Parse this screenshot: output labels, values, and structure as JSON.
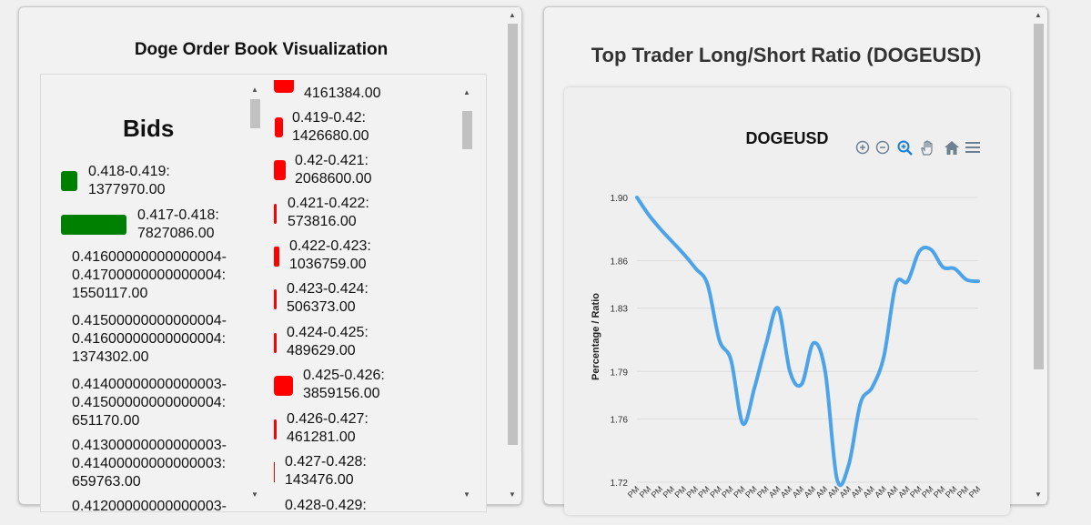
{
  "order_book": {
    "title": "Doge Order Book Visualization",
    "bids": {
      "heading": "Bids",
      "levels": [
        {
          "range": "0.418-0.419:",
          "amount": "1377970.00",
          "color": "#008000"
        },
        {
          "range": "0.417-0.418:",
          "amount": "7827086.00",
          "color": "#008000"
        },
        {
          "range_a": "0.41600000000000004-",
          "range_b": "0.41700000000000004:",
          "amount": "1550117.00"
        },
        {
          "range_a": "0.41500000000000004-",
          "range_b": "0.41600000000000004:",
          "amount": "1374302.00"
        },
        {
          "range_a": "0.41400000000000003-",
          "range_b": "0.41500000000000004:",
          "amount": "651170.00"
        },
        {
          "range_a": "0.41300000000000003-",
          "range_b": "0.41400000000000003:",
          "amount": "659763.00"
        },
        {
          "range_a": "0.41200000000000003-"
        }
      ]
    },
    "asks": {
      "color": "#ff0000",
      "levels": [
        {
          "range": "",
          "amount": "4161384.00"
        },
        {
          "range": "0.419-0.42:",
          "amount": "1426680.00"
        },
        {
          "range": "0.42-0.421:",
          "amount": "2068600.00"
        },
        {
          "range": "0.421-0.422:",
          "amount": "573816.00"
        },
        {
          "range": "0.422-0.423:",
          "amount": "1036759.00"
        },
        {
          "range": "0.423-0.424:",
          "amount": "506373.00"
        },
        {
          "range": "0.424-0.425:",
          "amount": "489629.00"
        },
        {
          "range": "0.425-0.426:",
          "amount": "3859156.00"
        },
        {
          "range": "0.426-0.427:",
          "amount": "461281.00"
        },
        {
          "range": "0.427-0.428:",
          "amount": "143476.00"
        },
        {
          "range": "0.428-0.429:",
          "amount": ""
        }
      ]
    }
  },
  "ratio_panel": {
    "title": "Top Trader Long/Short Ratio (DOGEUSD)",
    "toolbar": {
      "zoom_in": "zoom-in-icon",
      "zoom_out": "zoom-out-icon",
      "selection_zoom": "magnifier-icon",
      "pan": "hand-icon",
      "reset": "home-icon",
      "menu": "menu-icon"
    }
  },
  "chart_data": {
    "type": "line",
    "title": "DOGEUSD",
    "ylabel": "Percentage / Ratio",
    "xlabel": "",
    "ylim": [
      1.72,
      1.9
    ],
    "yticks": [
      "1.90",
      "1.86",
      "1.83",
      "1.79",
      "1.76",
      "1.72"
    ],
    "x": [
      "PM",
      "PM",
      "PM",
      "PM",
      "PM",
      "PM",
      "PM",
      "PM",
      "PM",
      "PM",
      "PM",
      "PM",
      "AM",
      "AM",
      "AM",
      "AM",
      "AM",
      "AM",
      "AM",
      "AM",
      "AM",
      "AM",
      "AM",
      "AM",
      "PM",
      "PM",
      "PM",
      "PM",
      "PM",
      "PM"
    ],
    "grid": true,
    "color": "#4da3ea",
    "series": [
      {
        "values": [
          1.9,
          1.889,
          1.88,
          1.872,
          1.864,
          1.855,
          1.845,
          1.81,
          1.797,
          1.757,
          1.78,
          1.808,
          1.83,
          1.79,
          1.782,
          1.808,
          1.79,
          1.722,
          1.731,
          1.77,
          1.78,
          1.8,
          1.845,
          1.847,
          1.866,
          1.867,
          1.856,
          1.855,
          1.848,
          1.847
        ]
      }
    ]
  }
}
